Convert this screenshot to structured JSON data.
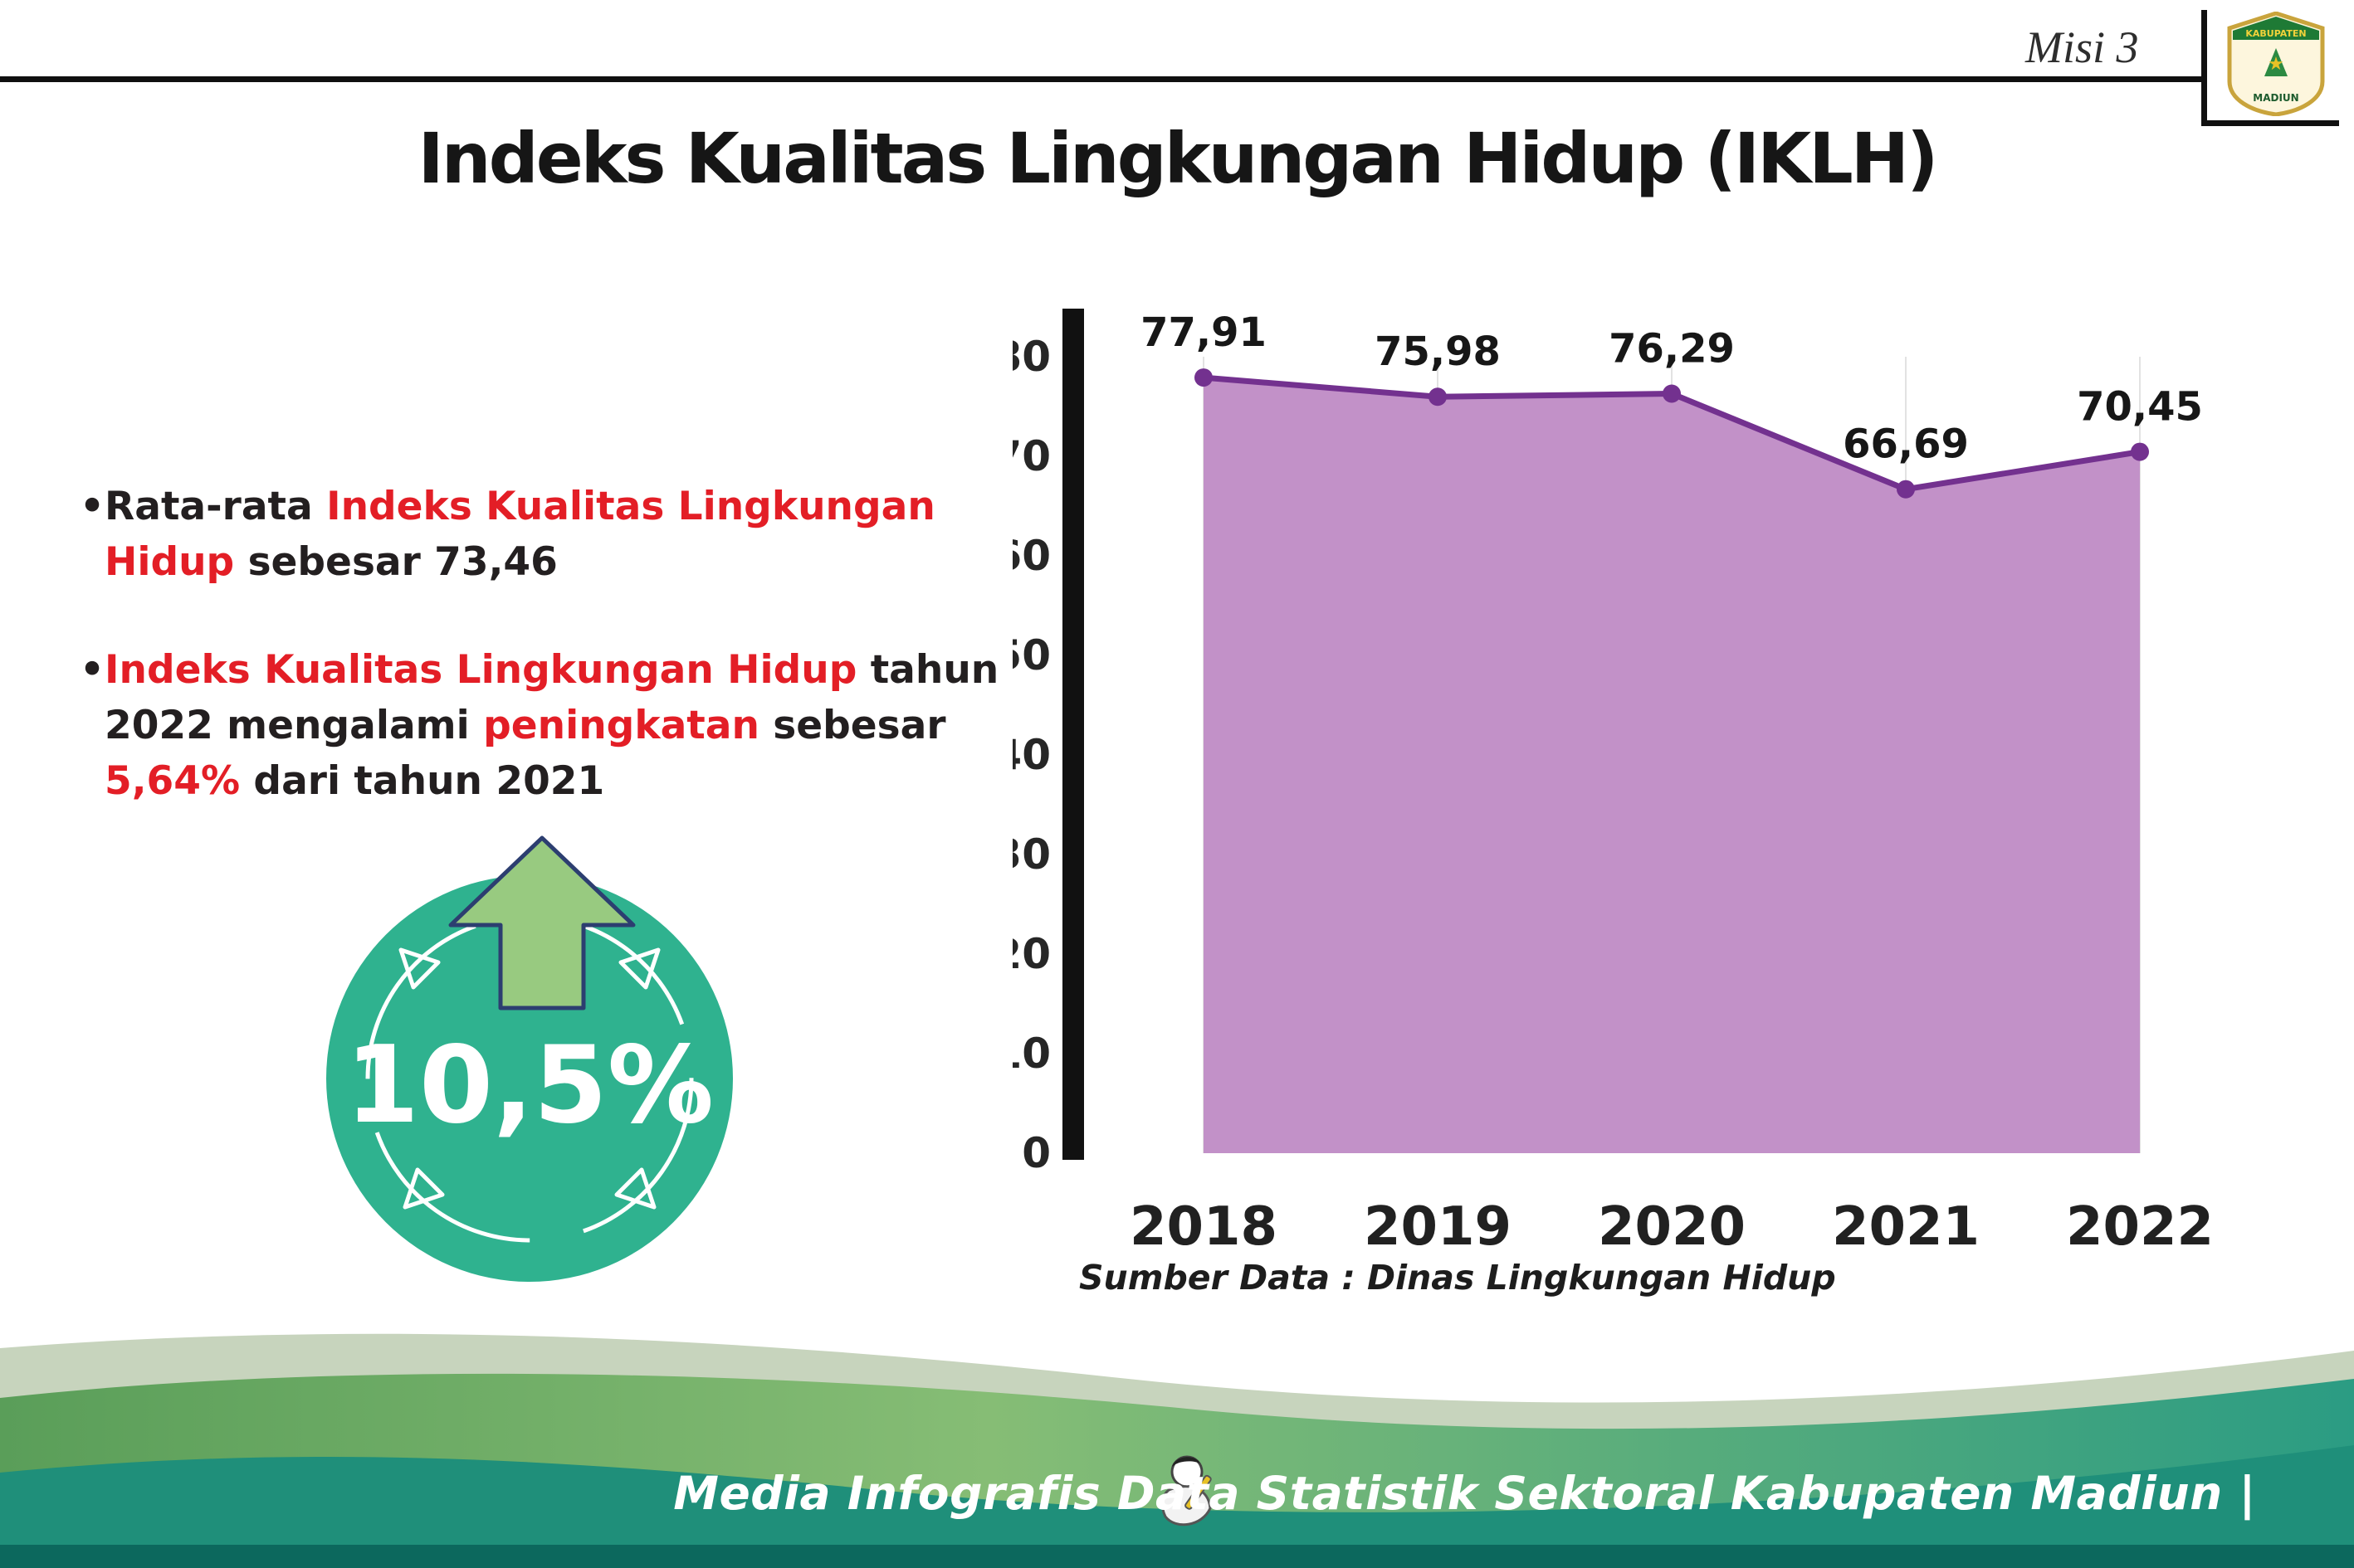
{
  "header": {
    "misi": "Misi 3",
    "logo": {
      "top": "KABUPATEN",
      "bottom": "MADIUN"
    }
  },
  "title": "Indeks Kualitas Lingkungan Hidup (IKLH)",
  "bullets": {
    "b1": [
      "Rata-rata ",
      "Indeks Kualitas Lingkungan Hidup",
      " sebesar 73,46"
    ],
    "b2": [
      "Indeks Kualitas Lingkungan Hidup",
      " tahun 2022 mengalami ",
      "peningkatan",
      " sebesar ",
      "5,64%",
      " dari tahun 2021"
    ]
  },
  "badge": {
    "value": "10,5%"
  },
  "chart_data": {
    "type": "area",
    "title": "",
    "categories": [
      "2018",
      "2019",
      "2020",
      "2021",
      "2022"
    ],
    "values": [
      77.91,
      75.98,
      76.29,
      66.69,
      70.45
    ],
    "value_labels": [
      "77,91",
      "75,98",
      "76,29",
      "66,69",
      "70,45"
    ],
    "ylim": [
      0,
      80
    ],
    "ytick_step": 10,
    "grid": "vertical",
    "legend": false,
    "fill_color": "#c291c8",
    "line_color": "#73318f",
    "axis_color": "#111111",
    "source": "Sumber Data : Dinas Lingkungan Hidup"
  },
  "footer": {
    "credit": "Media Infografis Data Statistik Sektoral Kabupaten Madiun |"
  },
  "colors": {
    "accent_red": "#e31e26",
    "badge_teal": "#2fb28f",
    "arrow_green": "#98ca80",
    "footer_dark_teal": "#0c685d"
  }
}
